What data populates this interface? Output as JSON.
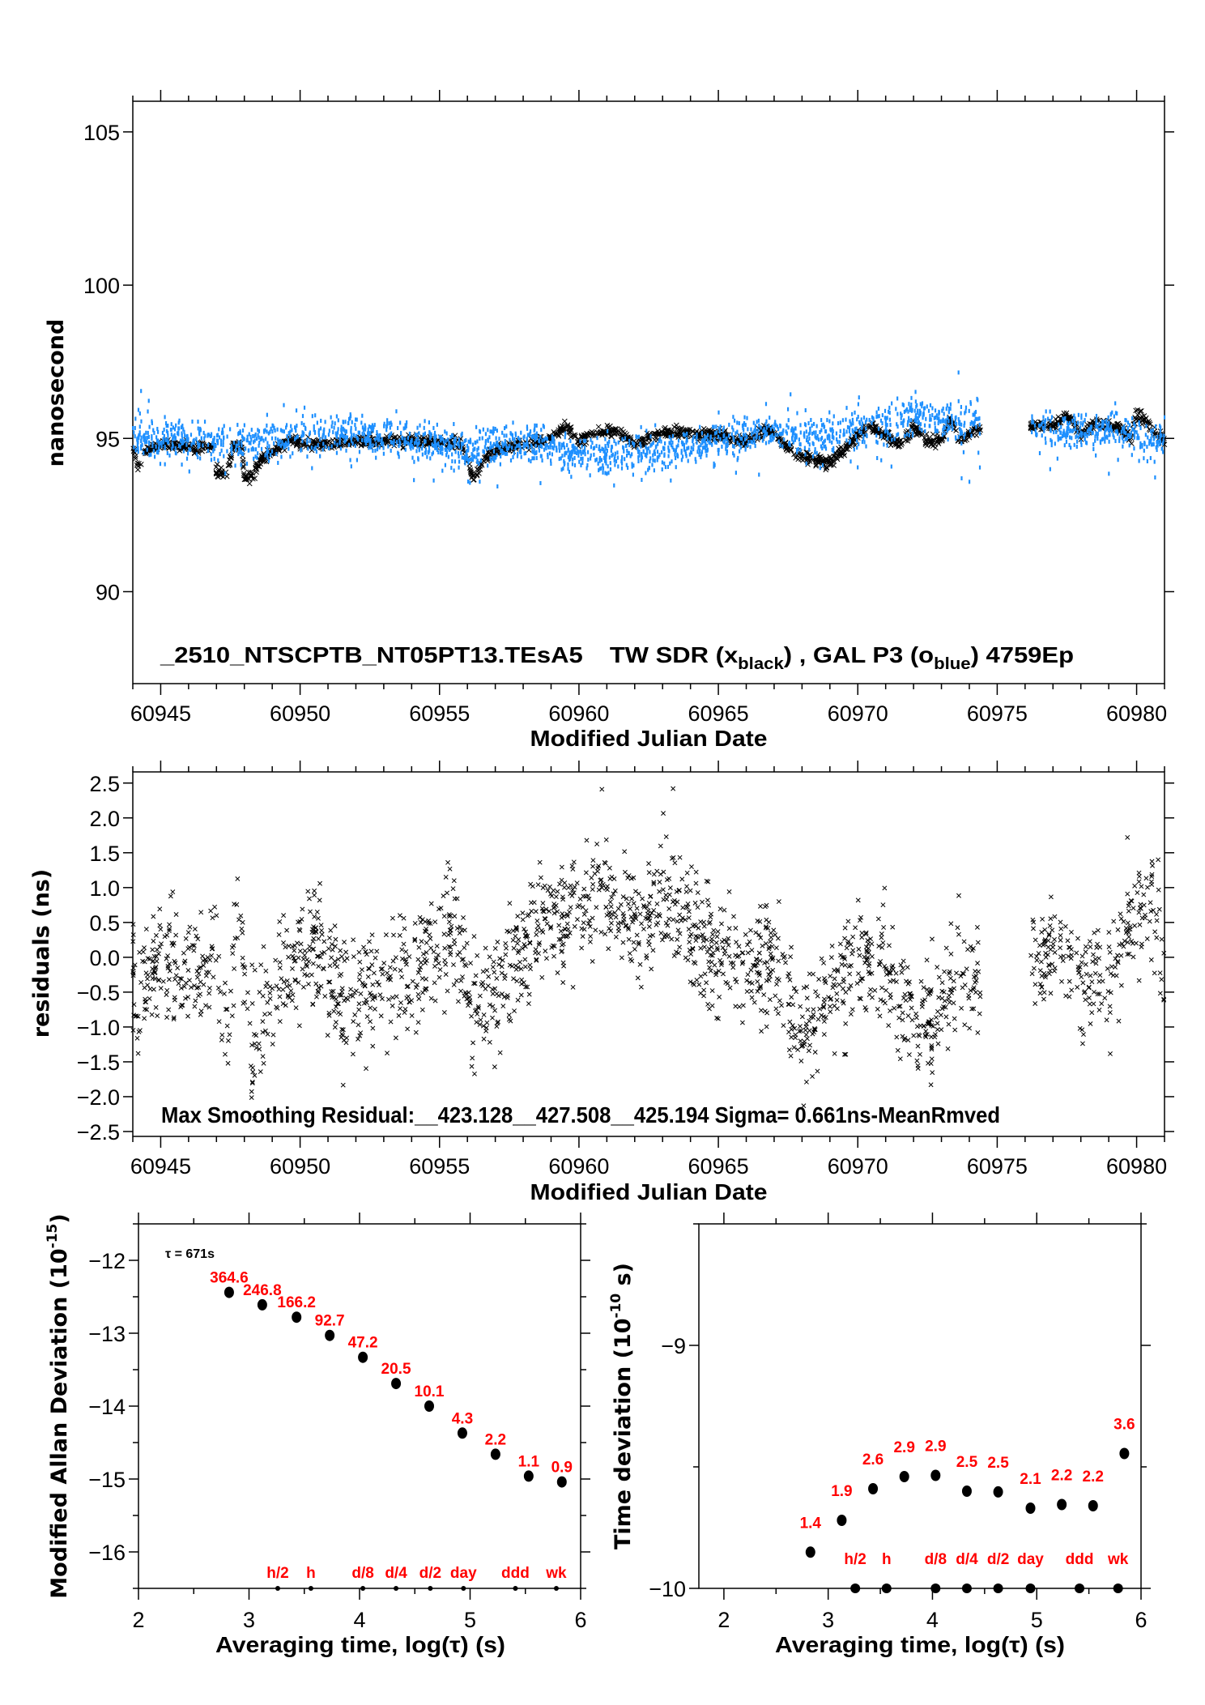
{
  "chart_data": [
    {
      "type": "scatter",
      "xlabel": "Modified Julian Date",
      "ylabel": "nanosecond",
      "xlim": [
        60944,
        60981
      ],
      "ylim": [
        87,
        106
      ],
      "xticks": [
        60945,
        60950,
        60955,
        60960,
        60965,
        60970,
        60975,
        60980
      ],
      "xtick_labels": [
        "60945",
        "60950",
        "60955",
        "60960",
        "60965",
        "60970",
        "60975",
        "60980"
      ],
      "yticks": [
        105,
        100,
        95,
        90
      ],
      "ytick_labels": [
        "105",
        "100",
        "95",
        "90"
      ],
      "grid": false,
      "annotation": {
        "file": "_2510_NTSCPTB_NT05PT13.TEsA5",
        "s1_pre": "TW SDR (x",
        "s1_sub": "black",
        "s2_pre": ") ,  GAL P3 (o",
        "s2_sub": "blue",
        "tail": ")  4759Ep"
      },
      "data_gap": [
        60974.4,
        60976.2
      ],
      "series": [
        {
          "name": "TW SDR",
          "color": "#000000",
          "marker": "x",
          "points": [
            [
              60944.0,
              94.8
            ],
            [
              60944.2,
              94.0
            ],
            [
              60944.5,
              94.6
            ],
            [
              60945.0,
              94.8
            ],
            [
              60946.5,
              94.7
            ],
            [
              60946.9,
              94.7
            ],
            [
              60947.0,
              93.9
            ],
            [
              60947.4,
              93.9
            ],
            [
              60947.6,
              94.8
            ],
            [
              60947.9,
              94.8
            ],
            [
              60948.0,
              93.7
            ],
            [
              60948.3,
              93.8
            ],
            [
              60948.6,
              94.3
            ],
            [
              60949.5,
              94.9
            ],
            [
              60951.0,
              94.8
            ],
            [
              60952.5,
              94.95
            ],
            [
              60955.0,
              94.85
            ],
            [
              60955.8,
              94.8
            ],
            [
              60956.2,
              93.7
            ],
            [
              60956.6,
              94.3
            ],
            [
              60957.0,
              94.6
            ],
            [
              60959.0,
              95.0
            ],
            [
              60959.5,
              95.4
            ],
            [
              60960.0,
              94.9
            ],
            [
              60960.5,
              95.2
            ],
            [
              60961.5,
              95.2
            ],
            [
              60962.0,
              94.8
            ],
            [
              60963.0,
              95.2
            ],
            [
              60965.0,
              95.1
            ],
            [
              60966.0,
              94.9
            ],
            [
              60966.8,
              95.3
            ],
            [
              60967.5,
              94.7
            ],
            [
              60968.0,
              94.4
            ],
            [
              60969.0,
              94.2
            ],
            [
              60969.5,
              94.6
            ],
            [
              60970.0,
              95.1
            ],
            [
              60970.5,
              95.4
            ],
            [
              60971.5,
              94.8
            ],
            [
              60972.0,
              95.4
            ],
            [
              60972.5,
              94.9
            ],
            [
              60973.0,
              94.9
            ],
            [
              60973.3,
              95.6
            ],
            [
              60973.7,
              94.9
            ],
            [
              60974.2,
              95.3
            ],
            [
              60974.4,
              95.2
            ],
            [
              60976.2,
              95.4
            ],
            [
              60977.0,
              95.4
            ],
            [
              60977.5,
              95.8
            ],
            [
              60978.0,
              95.1
            ],
            [
              60978.5,
              95.5
            ],
            [
              60979.5,
              95.3
            ],
            [
              60979.8,
              94.9
            ],
            [
              60980.0,
              95.8
            ],
            [
              60980.5,
              95.4
            ],
            [
              60981.0,
              94.9
            ]
          ]
        },
        {
          "name": "GAL P3",
          "color": "#1e90ff",
          "marker": "o",
          "points": [
            [
              60944.0,
              95.0
            ],
            [
              60946.0,
              95.0
            ],
            [
              60948.0,
              94.9
            ],
            [
              60950.0,
              95.1
            ],
            [
              60952.0,
              95.2
            ],
            [
              60954.0,
              94.9
            ],
            [
              60956.0,
              94.6
            ],
            [
              60958.0,
              94.9
            ],
            [
              60960.0,
              94.5
            ],
            [
              60962.0,
              94.5
            ],
            [
              60963.5,
              94.6
            ],
            [
              60965.0,
              95.0
            ],
            [
              60967.0,
              95.2
            ],
            [
              60969.0,
              95.1
            ],
            [
              60970.5,
              95.3
            ],
            [
              60972.0,
              95.7
            ],
            [
              60973.0,
              95.6
            ],
            [
              60974.4,
              95.5
            ],
            [
              60976.2,
              95.3
            ],
            [
              60978.0,
              95.2
            ],
            [
              60979.5,
              95.3
            ],
            [
              60980.5,
              94.8
            ],
            [
              60981.0,
              95.0
            ]
          ]
        }
      ]
    },
    {
      "type": "scatter",
      "xlabel": "Modified Julian Date",
      "ylabel": "residuals (ns)",
      "xlim": [
        60944,
        60981
      ],
      "ylim": [
        -2.57,
        2.66
      ],
      "xticks": [
        60945,
        60950,
        60955,
        60960,
        60965,
        60970,
        60975,
        60980
      ],
      "xtick_labels": [
        "60945",
        "60950",
        "60955",
        "60960",
        "60965",
        "60970",
        "60975",
        "60980"
      ],
      "yticks": [
        2.5,
        2.0,
        1.5,
        1.0,
        0.5,
        0.0,
        -0.5,
        -1.0,
        -1.5,
        -2.0,
        -2.5
      ],
      "ytick_labels": [
        "2.5",
        "2.0",
        "1.5",
        "1.0",
        "0.5",
        "0.0",
        "−0.5",
        "−1.0",
        "−1.5",
        "−2.0",
        "−2.5"
      ],
      "grid": false,
      "annotation": "Max Smoothing Residual:__423.128__427.508__425.194  Sigma= 0.661ns-MeanRmved",
      "data_gap": [
        60974.4,
        60976.2
      ],
      "series": [
        {
          "color": "#000000",
          "marker": "x",
          "points": [
            [
              60944.0,
              -0.3
            ],
            [
              60944.15,
              -1.2
            ],
            [
              60944.4,
              -0.5
            ],
            [
              60945.0,
              0.0
            ],
            [
              60946.0,
              -0.3
            ],
            [
              60947.0,
              0.0
            ],
            [
              60947.3,
              -1.0
            ],
            [
              60947.8,
              0.3
            ],
            [
              60948.3,
              -1.5
            ],
            [
              60949.0,
              -0.6
            ],
            [
              60950.0,
              0.0
            ],
            [
              60950.7,
              0.2
            ],
            [
              60951.5,
              -0.7
            ],
            [
              60952.5,
              -0.3
            ],
            [
              60953.5,
              -0.4
            ],
            [
              60954.5,
              0.0
            ],
            [
              60955.5,
              0.4
            ],
            [
              60956.2,
              -0.8
            ],
            [
              60957.0,
              -0.5
            ],
            [
              60958.0,
              0.2
            ],
            [
              60959.0,
              0.5
            ],
            [
              60960.0,
              0.6
            ],
            [
              60960.8,
              1.2
            ],
            [
              60961.5,
              0.6
            ],
            [
              60962.5,
              0.5
            ],
            [
              60963.5,
              0.8
            ],
            [
              60964.5,
              0.2
            ],
            [
              60965.5,
              0.0
            ],
            [
              60966.5,
              0.0
            ],
            [
              60967.3,
              -0.3
            ],
            [
              60968.0,
              -1.1
            ],
            [
              60969.0,
              -0.6
            ],
            [
              60970.0,
              0.0
            ],
            [
              60971.0,
              -0.2
            ],
            [
              60972.0,
              -0.8
            ],
            [
              60972.7,
              -1.0
            ],
            [
              60973.5,
              -0.2
            ],
            [
              60974.4,
              -0.3
            ],
            [
              60976.2,
              0.0
            ],
            [
              60977.0,
              0.3
            ],
            [
              60978.0,
              -0.2
            ],
            [
              60979.0,
              -0.4
            ],
            [
              60979.7,
              0.5
            ],
            [
              60980.5,
              0.8
            ],
            [
              60981.0,
              -0.2
            ]
          ]
        }
      ]
    },
    {
      "type": "scatter",
      "xlabel": "Averaging time, log(τ) (s)",
      "ylabel": "Modified Allan Deviation (10",
      "ylabel_sup": "-15",
      "ylabel_tail": ")",
      "xlim": [
        2,
        6
      ],
      "ylim": [
        -16.5,
        -11.5
      ],
      "xticks": [
        2,
        3,
        4,
        5,
        6
      ],
      "xtick_labels": [
        "2",
        "3",
        "4",
        "5",
        "6"
      ],
      "yticks": [
        -12,
        -13,
        -14,
        -15,
        -16
      ],
      "ytick_labels": [
        "−12",
        "−13",
        "−14",
        "−15",
        "−16"
      ],
      "annotation": "τ = 671s",
      "x": [
        2.82,
        3.12,
        3.43,
        3.73,
        4.03,
        4.33,
        4.63,
        4.93,
        5.23,
        5.53,
        5.83
      ],
      "y": [
        -12.44,
        -12.61,
        -12.78,
        -13.03,
        -13.33,
        -13.69,
        -14.0,
        -14.37,
        -14.66,
        -14.96,
        -15.04
      ],
      "point_labels": [
        "364.6",
        "246.8",
        "166.2",
        "92.7",
        "47.2",
        "20.5",
        "10.1",
        "4.3",
        "2.2",
        "1.1",
        "0.9"
      ],
      "markers": [
        {
          "label": "h/2",
          "x": 3.26
        },
        {
          "label": "h",
          "x": 3.56
        },
        {
          "label": "d/8",
          "x": 4.03
        },
        {
          "label": "d/4",
          "x": 4.33
        },
        {
          "label": "d/2",
          "x": 4.64
        },
        {
          "label": "day",
          "x": 4.94
        },
        {
          "label": "ddd",
          "x": 5.41
        },
        {
          "label": "wk",
          "x": 5.78
        }
      ],
      "label_color": "#ff0000"
    },
    {
      "type": "scatter",
      "xlabel": "Averaging time, log(τ) (s)",
      "ylabel": "Time deviation (10",
      "ylabel_sup": "-10",
      "ylabel_tail": " s)",
      "xlim": [
        1.76,
        6
      ],
      "ylim": [
        -10,
        -8.5
      ],
      "xticks": [
        2,
        3,
        4,
        5,
        6
      ],
      "xtick_labels": [
        "2",
        "3",
        "4",
        "5",
        "6"
      ],
      "yticks": [
        -9,
        -10
      ],
      "ytick_labels": [
        "−9",
        "−10"
      ],
      "x": [
        2.83,
        3.13,
        3.43,
        3.73,
        4.03,
        4.33,
        4.63,
        4.94,
        5.24,
        5.54,
        5.84
      ],
      "y": [
        -9.851,
        -9.72,
        -9.59,
        -9.54,
        -9.535,
        -9.6,
        -9.603,
        -9.67,
        -9.655,
        -9.66,
        -9.445
      ],
      "point_labels": [
        "1.4",
        "1.9",
        "2.6",
        "2.9",
        "2.9",
        "2.5",
        "2.5",
        "2.1",
        "2.2",
        "2.2",
        "3.6"
      ],
      "markers": [
        {
          "label": "h/2",
          "x": 3.26
        },
        {
          "label": "h",
          "x": 3.56
        },
        {
          "label": "d/8",
          "x": 4.03
        },
        {
          "label": "d/4",
          "x": 4.33
        },
        {
          "label": "d/2",
          "x": 4.63
        },
        {
          "label": "day",
          "x": 4.94
        },
        {
          "label": "ddd",
          "x": 5.41
        },
        {
          "label": "wk",
          "x": 5.78
        }
      ],
      "label_color": "#ff0000"
    }
  ]
}
